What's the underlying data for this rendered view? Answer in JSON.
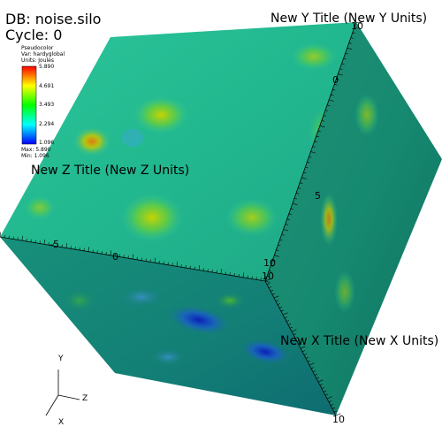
{
  "header": {
    "db_label": "DB: noise.silo",
    "cycle_label": "Cycle: 0"
  },
  "legend": {
    "plot_type": "Pseudocolor",
    "var_label": "Var: hardyglobal",
    "units_label": "Units: Joules",
    "ticks": [
      "5.890",
      "4.691",
      "3.493",
      "2.294",
      "1.096"
    ],
    "max_label": "Max: 5.890",
    "min_label": "Min: 1.096",
    "colors": [
      "#ff0000",
      "#ffff00",
      "#00ff00",
      "#00ffff",
      "#0000ff"
    ]
  },
  "axes": {
    "x_title": "New X Title (New X Units)",
    "y_title": "New Y Title (New Y Units)",
    "z_title": "New Z Title (New Z Units)",
    "tick_labels": {
      "left_minus": "-5",
      "front_0": "0",
      "front_10": "10",
      "corner_10": "10",
      "top_10": "10",
      "right_5": "5",
      "right_0": "0",
      "bottom_10": "10"
    }
  },
  "triad": {
    "x": "X",
    "y": "Y",
    "z": "Z"
  }
}
